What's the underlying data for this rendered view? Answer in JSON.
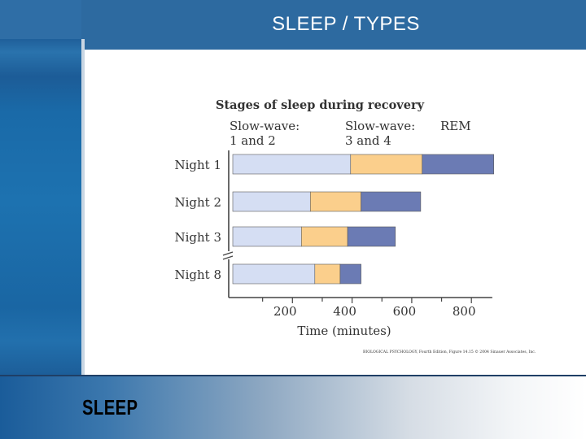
{
  "slide": {
    "title": "SLEEP / TYPES",
    "footer_label": "SLEEP"
  },
  "colors": {
    "header": "#2d6aa0",
    "slow_wave_1_2": "#d5def3",
    "slow_wave_3_4": "#fbcf8c",
    "rem": "#6b7bb4"
  },
  "chart_data": {
    "type": "bar",
    "orientation": "horizontal",
    "stacked": true,
    "title": "Stages of sleep during recovery",
    "xlabel": "Time (minutes)",
    "ylabel": "",
    "xlim": [
      0,
      870
    ],
    "xticks": [
      200,
      400,
      600,
      800
    ],
    "grid": false,
    "axis_break": true,
    "legend_position": "top",
    "legend": [
      {
        "line1": "Slow-wave:",
        "line2": "1 and 2"
      },
      {
        "line1": "Slow-wave:",
        "line2": "3 and 4"
      },
      {
        "line1": "REM",
        "line2": ""
      }
    ],
    "categories": [
      "Night 1",
      "Night 2",
      "Night 3",
      "Night 8"
    ],
    "series": [
      {
        "name": "Slow-wave: 1 and 2",
        "color": "#d5def3",
        "values": [
          395,
          260,
          230,
          275
        ]
      },
      {
        "name": "Slow-wave: 3 and 4",
        "color": "#fbcf8c",
        "values": [
          240,
          170,
          155,
          85
        ]
      },
      {
        "name": "REM",
        "color": "#6b7bb4",
        "values": [
          240,
          200,
          160,
          70
        ]
      }
    ],
    "credit": "BIOLOGICAL PSYCHOLOGY, Fourth Edition, Figure 14.15 © 2004 Sinauer Associates, Inc."
  }
}
